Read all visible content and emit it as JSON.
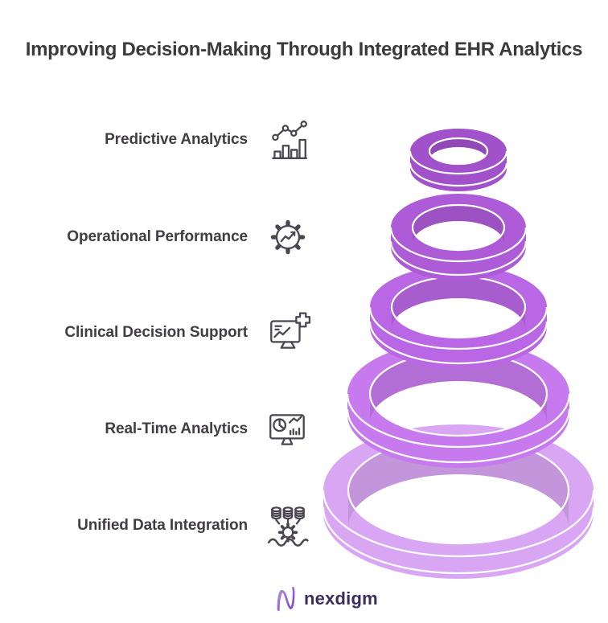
{
  "title": "Improving Decision-Making Through Integrated EHR Analytics",
  "items": [
    {
      "label": "Predictive Analytics",
      "icon": "predictive-analytics-icon"
    },
    {
      "label": "Operational Performance",
      "icon": "operational-performance-icon"
    },
    {
      "label": "Clinical Decision Support",
      "icon": "clinical-decision-support-icon"
    },
    {
      "label": "Real-Time Analytics",
      "icon": "real-time-analytics-icon"
    },
    {
      "label": "Unified Data Integration",
      "icon": "unified-data-integration-icon"
    }
  ],
  "spiral": {
    "description": "Five 3D tori stacked as a funnel: smallest and darkest ring at top, largest and lightest at bottom",
    "ring_colors_top_to_bottom": [
      "#a151c9",
      "#ad5bd7",
      "#ba67e5",
      "#c77aee",
      "#d9a6f3"
    ],
    "highlight_color": "#ffffff"
  },
  "footer": {
    "logo_text": "nexdigm"
  },
  "colors": {
    "background": "#ffffff",
    "title_text": "#3b3b3b",
    "label_text": "#423d44",
    "icon_stroke": "#4a4550",
    "logo_text": "#3b2d5e",
    "logo_mark_gradient_start": "#b488e8",
    "logo_mark_gradient_end": "#7e3ecc"
  }
}
